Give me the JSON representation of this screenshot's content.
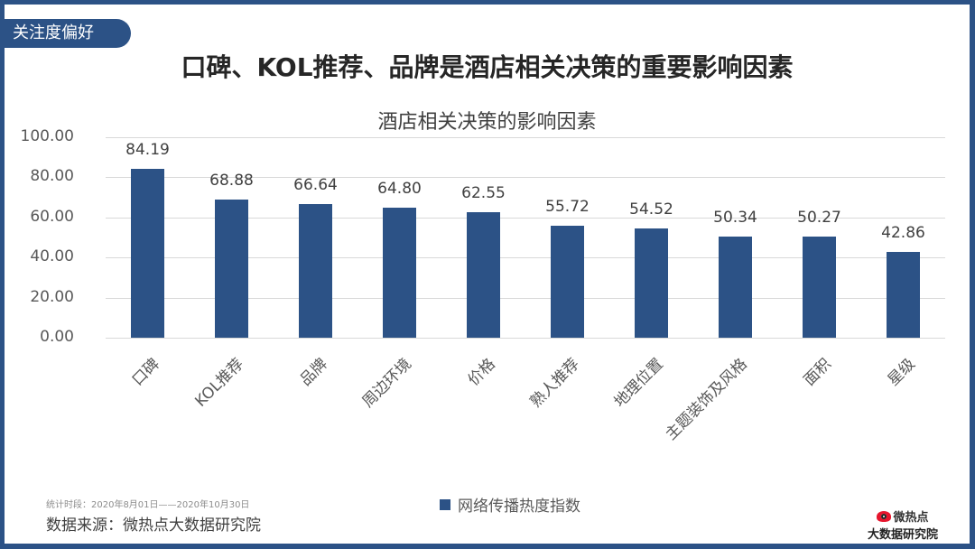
{
  "tag": "关注度偏好",
  "main_title": "口碑、KOL推荐、品牌是酒店相关决策的重要影响因素",
  "footer": {
    "period": "统计时段：2020年8月01日——2020年10月30日",
    "source": "数据来源：微热点大数据研究院",
    "logo_top": "微热点",
    "logo_bottom": "大数据研究院"
  },
  "colors": {
    "accent": "#2c5286",
    "bar": "#2c5286",
    "grid": "#d9d9d9"
  },
  "chart_data": {
    "type": "bar",
    "title": "酒店相关决策的影响因素",
    "xlabel": "",
    "ylabel": "",
    "ylim": [
      0,
      100
    ],
    "yticks": [
      "0.00",
      "20.00",
      "40.00",
      "60.00",
      "80.00",
      "100.00"
    ],
    "grid": true,
    "legend_position": "bottom",
    "categories": [
      "口碑",
      "KOL推荐",
      "品牌",
      "周边环境",
      "价格",
      "熟人推荐",
      "地理位置",
      "主题装饰及风格",
      "面积",
      "星级"
    ],
    "series": [
      {
        "name": "网络传播热度指数",
        "values": [
          84.19,
          68.88,
          66.64,
          64.8,
          62.55,
          55.72,
          54.52,
          50.34,
          50.27,
          42.86
        ]
      }
    ],
    "value_labels": [
      "84.19",
      "68.88",
      "66.64",
      "64.80",
      "62.55",
      "55.72",
      "54.52",
      "50.34",
      "50.27",
      "42.86"
    ]
  }
}
